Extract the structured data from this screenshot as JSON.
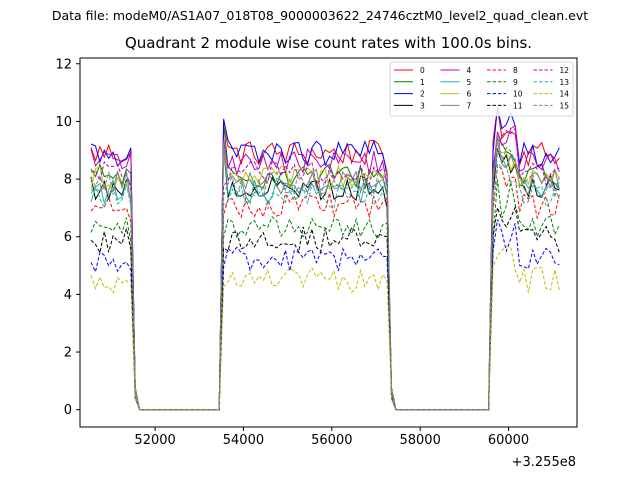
{
  "header": {
    "suptitle": "Data file: modeM0/AS1A07_018T08_9000003622_24746cztM0_level2_quad_clean.evt"
  },
  "chart_data": {
    "type": "line",
    "title": "Quadrant 2 module wise count rates with 100.0s bins.",
    "xlabel": "",
    "ylabel": "",
    "x_offset_label": "+3.255e8",
    "xlim": [
      50300,
      61550
    ],
    "ylim": [
      -0.6,
      12.2
    ],
    "xticks": [
      52000,
      54000,
      56000,
      58000,
      60000
    ],
    "xtick_labels": [
      "52000",
      "54000",
      "56000",
      "58000",
      "60000"
    ],
    "yticks": [
      0,
      2,
      4,
      6,
      8,
      10,
      12
    ],
    "ytick_labels": [
      "0",
      "2",
      "4",
      "6",
      "8",
      "10",
      "12"
    ],
    "bin_seconds": 100,
    "segments": [
      [
        50550,
        61150
      ]
    ],
    "observation_windows": [
      [
        50550,
        51450
      ],
      [
        53550,
        57250
      ],
      [
        59650,
        61150
      ]
    ],
    "legend": {
      "placement": "top-right",
      "columns": 4
    },
    "series": [
      {
        "name": "0",
        "color": "#ff0000",
        "dash": "solid",
        "level": 8.9
      },
      {
        "name": "1",
        "color": "#008000",
        "dash": "solid",
        "level": 8.1
      },
      {
        "name": "2",
        "color": "#0000ff",
        "dash": "solid",
        "level": 8.9
      },
      {
        "name": "3",
        "color": "#000000",
        "dash": "solid",
        "level": 7.7
      },
      {
        "name": "4",
        "color": "#bf00bf",
        "dash": "solid",
        "level": 8.6
      },
      {
        "name": "5",
        "color": "#20b2aa",
        "dash": "solid",
        "level": 7.6
      },
      {
        "name": "6",
        "color": "#bfbf00",
        "dash": "solid",
        "level": 8.0
      },
      {
        "name": "7",
        "color": "#808080",
        "dash": "solid",
        "level": 7.9
      },
      {
        "name": "8",
        "color": "#ff0000",
        "dash": "dashed",
        "level": 7.1
      },
      {
        "name": "9",
        "color": "#008000",
        "dash": "dashed",
        "level": 6.3
      },
      {
        "name": "10",
        "color": "#0000ff",
        "dash": "dashed",
        "level": 5.2
      },
      {
        "name": "11",
        "color": "#000000",
        "dash": "dashed",
        "level": 5.9
      },
      {
        "name": "12",
        "color": "#bf00bf",
        "dash": "dashed",
        "level": 8.2
      },
      {
        "name": "13",
        "color": "#20b2aa",
        "dash": "dashed",
        "level": 7.4
      },
      {
        "name": "14",
        "color": "#bfbf00",
        "dash": "dashed",
        "level": 4.5
      },
      {
        "name": "15",
        "color": "#808080",
        "dash": "dashed",
        "level": 7.8
      }
    ]
  }
}
